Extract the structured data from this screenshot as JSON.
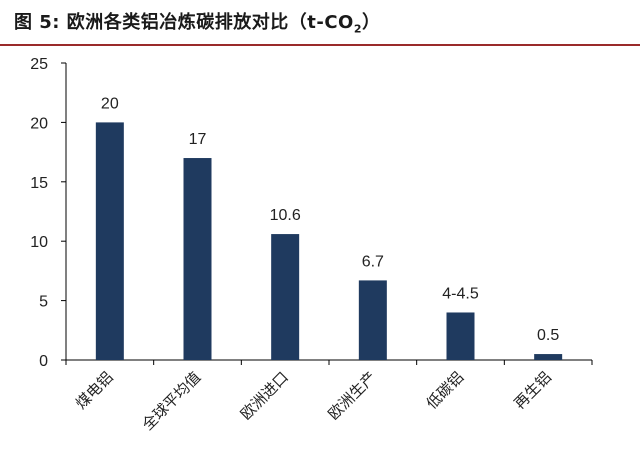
{
  "header": {
    "title_main": "图 5:  欧洲各类铝冶炼碳排放对比（t-CO",
    "title_sub": "2",
    "title_close": "）"
  },
  "chart_data": {
    "type": "bar",
    "categories": [
      "煤电铝",
      "全球平均值",
      "欧洲进口",
      "欧洲生产",
      "低碳铝",
      "再生铝"
    ],
    "values": [
      20,
      17,
      10.6,
      6.7,
      4,
      0.5
    ],
    "data_labels": [
      "20",
      "17",
      "10.6",
      "6.7",
      "4-4.5",
      "0.5"
    ],
    "yticks": [
      0,
      5,
      10,
      15,
      20,
      25
    ],
    "ylim": [
      0,
      25
    ],
    "title": "",
    "xlabel": "",
    "ylabel": "",
    "grid": false,
    "bar_color": "#1f3a5f"
  }
}
